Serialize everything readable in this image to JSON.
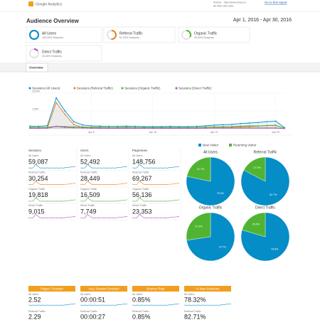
{
  "header": {
    "product": "Google Analytics",
    "property": "Rancer - http://www.rancer.io",
    "view": "All Web Site Data",
    "link": "Go to this report"
  },
  "title": "Audience Overview",
  "date_range": "Apr 1, 2016 - Apr 30, 2016",
  "segments": [
    {
      "name": "All Users",
      "share": 100,
      "share_label": "100.00% Sessions",
      "color": "#058dc7"
    },
    {
      "name": "Referral Traffic",
      "share": 51.2,
      "share_label": "51.20% Sessions",
      "color": "#ed7e17"
    },
    {
      "name": "Organic Traffic",
      "share": 33.54,
      "share_label": "33.54% Sessions",
      "color": "#50b432"
    },
    {
      "name": "Direct Traffic",
      "share": 15.26,
      "share_label": "15.26% Sessions",
      "color": "#af49c5"
    }
  ],
  "tab": "Overview",
  "metrics": [
    {
      "name": "Sessions",
      "rows": [
        {
          "label": "All Users",
          "value": "59,087"
        },
        {
          "label": "Referral Traffic",
          "value": "30,254"
        },
        {
          "label": "Organic Traffic",
          "value": "19,818"
        },
        {
          "label": "Direct Traffic",
          "value": "9,015"
        }
      ]
    },
    {
      "name": "Users",
      "rows": [
        {
          "label": "All Users",
          "value": "52,492"
        },
        {
          "label": "Referral Traffic",
          "value": "28,449"
        },
        {
          "label": "Organic Traffic",
          "value": "16,509"
        },
        {
          "label": "Direct Traffic",
          "value": "7,749"
        }
      ]
    },
    {
      "name": "Pageviews",
      "rows": [
        {
          "label": "All Users",
          "value": "148,756"
        },
        {
          "label": "Referral Traffic",
          "value": "69,267"
        },
        {
          "label": "Organic Traffic",
          "value": "56,136"
        },
        {
          "label": "Direct Traffic",
          "value": "23,353"
        }
      ]
    }
  ],
  "bottom_metrics": [
    {
      "name": "Pages / Session",
      "rows": [
        {
          "label": "All Users",
          "value": "2.52"
        },
        {
          "label": "Referral Traffic",
          "value": "2.29"
        }
      ]
    },
    {
      "name": "Avg. Session Duration",
      "rows": [
        {
          "label": "All Users",
          "value": "00:00:51"
        },
        {
          "label": "Referral Traffic",
          "value": "00:00:27"
        }
      ]
    },
    {
      "name": "Bounce Rate",
      "rows": [
        {
          "label": "All Users",
          "value": "0.85%"
        },
        {
          "label": "Referral Traffic",
          "value": "0.85%"
        }
      ]
    },
    {
      "name": "% New Sessions",
      "rows": [
        {
          "label": "All Users",
          "value": "78.32%"
        },
        {
          "label": "Referral Traffic",
          "value": "82.71%"
        }
      ]
    }
  ],
  "pie_legend": {
    "names": [
      "New Visitor",
      "Returning Visitor"
    ],
    "colors": [
      "#058dc7",
      "#50b432"
    ]
  },
  "chart_data": [
    {
      "type": "line",
      "x": [
        null,
        null,
        null,
        null,
        null,
        null,
        null,
        "Apr 8",
        null,
        null,
        null,
        null,
        null,
        null,
        "Apr 15",
        null,
        null,
        null,
        null,
        null,
        null,
        "Apr 22",
        null,
        null,
        null,
        null,
        null,
        null,
        "Apr 29",
        null
      ],
      "ylim": [
        0,
        15000
      ],
      "yticks": [
        {
          "value": 7500,
          "label": "7,500"
        },
        {
          "value": 15000,
          "label": "15,000"
        }
      ],
      "grid": true,
      "series": [
        {
          "name": "Sessions (All Users)",
          "color": "#058dc7",
          "values": [
            1100,
            1000,
            1300,
            13000,
            7500,
            3000,
            1600,
            1200,
            1100,
            1000,
            1000,
            1100,
            1000,
            900,
            900,
            900,
            1000,
            900,
            900,
            1000,
            1200,
            1500,
            1700,
            1800,
            2200,
            2400,
            2600,
            3000,
            3200,
            500
          ]
        },
        {
          "name": "Sessions (Referral Traffic)",
          "color": "#ed7e17",
          "values": [
            300,
            250,
            400,
            11000,
            6000,
            1800,
            500,
            350,
            300,
            250,
            250,
            300,
            250,
            200,
            200,
            200,
            250,
            200,
            200,
            250,
            300,
            400,
            500,
            550,
            800,
            900,
            1100,
            1400,
            1500,
            150
          ]
        },
        {
          "name": "Sessions (Organic Traffic)",
          "color": "#50b432",
          "values": [
            600,
            550,
            650,
            1000,
            900,
            800,
            750,
            600,
            600,
            550,
            550,
            600,
            550,
            500,
            500,
            500,
            550,
            500,
            500,
            550,
            650,
            800,
            900,
            950,
            1100,
            1200,
            1200,
            1300,
            1400,
            250
          ]
        },
        {
          "name": "Sessions (Direct Traffic)",
          "color": "#af49c5",
          "values": [
            200,
            200,
            250,
            1000,
            600,
            400,
            350,
            250,
            200,
            200,
            200,
            200,
            200,
            200,
            200,
            200,
            200,
            200,
            200,
            200,
            250,
            300,
            300,
            300,
            300,
            300,
            300,
            300,
            300,
            100
          ]
        }
      ]
    },
    {
      "type": "pie",
      "title": "All Users",
      "values": [
        78.3,
        21.7
      ],
      "value_labels": [
        "78.3%",
        "21.7%"
      ]
    },
    {
      "type": "pie",
      "title": "Referral Traffic",
      "values": [
        82.7,
        17.3
      ],
      "value_labels": [
        "82.7%",
        "17.3%"
      ]
    },
    {
      "type": "pie",
      "title": "Organic Traffic",
      "values": [
        72.7,
        27.3
      ],
      "value_labels": [
        "72.7%",
        "27.3%"
      ]
    },
    {
      "type": "pie",
      "title": "Direct Traffic",
      "values": [
        79.6,
        20.4
      ],
      "value_labels": [
        "79.6%",
        "20.4%"
      ]
    }
  ]
}
